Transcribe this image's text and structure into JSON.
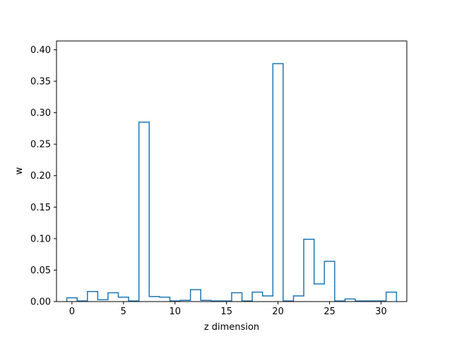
{
  "chart_data": {
    "type": "step",
    "title": "",
    "xlabel": "z dimension",
    "ylabel": "w",
    "xlim": [
      -1.5,
      32.5
    ],
    "ylim": [
      0,
      0.414
    ],
    "grid": false,
    "legend": "none",
    "color": "#1f77b4",
    "xticks": [
      0,
      5,
      10,
      15,
      20,
      25,
      30
    ],
    "xtick_labels": [
      "0",
      "5",
      "10",
      "15",
      "20",
      "25",
      "30"
    ],
    "yticks": [
      0,
      0.05,
      0.1,
      0.15,
      0.2,
      0.25,
      0.3,
      0.35,
      0.4
    ],
    "ytick_labels": [
      "0.00",
      "0.05",
      "0.10",
      "0.15",
      "0.20",
      "0.25",
      "0.30",
      "0.35",
      "0.40"
    ],
    "x": [
      0,
      1,
      2,
      3,
      4,
      5,
      6,
      7,
      8,
      9,
      10,
      11,
      12,
      13,
      14,
      15,
      16,
      17,
      18,
      19,
      20,
      21,
      22,
      23,
      24,
      25,
      26,
      27,
      28,
      29,
      30,
      31
    ],
    "values": [
      0.006,
      0.001,
      0.016,
      0.003,
      0.014,
      0.007,
      0.001,
      0.285,
      0.008,
      0.007,
      0.001,
      0.002,
      0.019,
      0.002,
      0.001,
      0.001,
      0.014,
      0.001,
      0.015,
      0.009,
      0.378,
      0.001,
      0.009,
      0.099,
      0.028,
      0.064,
      0.001,
      0.004,
      0.001,
      0.001,
      0.001,
      0.015
    ]
  }
}
